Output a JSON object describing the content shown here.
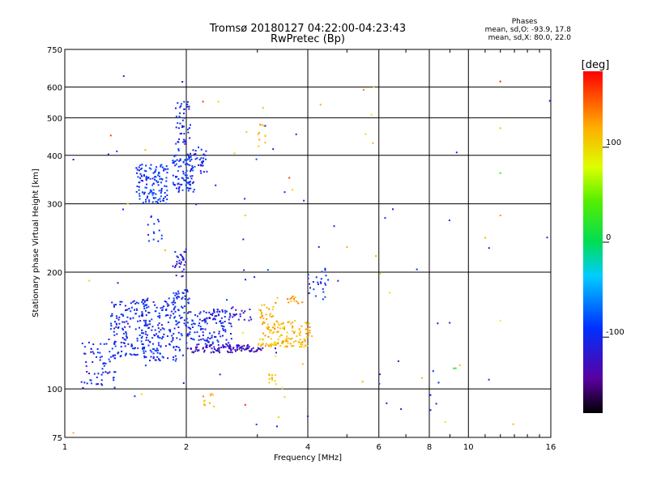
{
  "header": {
    "title_line1": "Tromsø 20180127 04:22:00-04:23:43",
    "title_line2": "RwPretec (Bp)"
  },
  "stats": {
    "title": "Phases",
    "line_o": "mean, sd,O: -93.9, 17.8",
    "line_x": "mean, sd,X:  80.0, 22.0"
  },
  "colorbar": {
    "unit_label": "[deg]",
    "ticks": [
      {
        "value": 100,
        "label": "100"
      },
      {
        "value": 0,
        "label": "0"
      },
      {
        "value": -100,
        "label": "-100"
      }
    ],
    "range": [
      -180,
      180
    ]
  },
  "chart_data": {
    "type": "scatter",
    "title": "Tromsø 20180127 04:22:00-04:23:43",
    "subtitle": "RwPretec (Bp)",
    "xlabel": "Frequency [MHz]",
    "ylabel": "Stationary phase Virtual Height [km]",
    "x_scale": "log",
    "y_scale": "log",
    "xlim": [
      1,
      16
    ],
    "ylim": [
      75,
      750
    ],
    "x_ticks": [
      1,
      2,
      4,
      6,
      8,
      10,
      16
    ],
    "y_ticks": [
      75,
      100,
      200,
      300,
      400,
      500,
      600,
      750
    ],
    "grid": true,
    "color_by": "phase [deg]",
    "clusters": [
      {
        "f": [
          1.1,
          1.35
        ],
        "h": [
          100,
          135
        ],
        "phase": -100,
        "n": 70
      },
      {
        "f": [
          1.3,
          1.6
        ],
        "h": [
          120,
          170
        ],
        "phase": -100,
        "n": 140
      },
      {
        "f": [
          1.55,
          1.9
        ],
        "h": [
          118,
          172
        ],
        "phase": -98,
        "n": 160
      },
      {
        "f": [
          1.85,
          2.05
        ],
        "h": [
          125,
          180
        ],
        "phase": -95,
        "n": 60
      },
      {
        "f": [
          2.0,
          2.6
        ],
        "h": [
          130,
          160
        ],
        "phase": -100,
        "n": 110
      },
      {
        "f": [
          2.05,
          3.1
        ],
        "h": [
          124,
          130
        ],
        "phase": -125,
        "n": 110
      },
      {
        "f": [
          2.2,
          2.9
        ],
        "h": [
          150,
          162
        ],
        "phase": -120,
        "n": 40
      },
      {
        "f": [
          3.0,
          4.0
        ],
        "h": [
          128,
          135
        ],
        "phase": 112,
        "n": 70
      },
      {
        "f": [
          3.1,
          4.05
        ],
        "h": [
          136,
          150
        ],
        "phase": 118,
        "n": 70
      },
      {
        "f": [
          3.0,
          3.3
        ],
        "h": [
          146,
          165
        ],
        "phase": 120,
        "n": 25
      },
      {
        "f": [
          3.3,
          3.9
        ],
        "h": [
          165,
          175
        ],
        "phase": 120,
        "n": 15
      },
      {
        "f": [
          3.2,
          3.35
        ],
        "h": [
          102,
          110
        ],
        "phase": 110,
        "n": 12
      },
      {
        "f": [
          4.0,
          4.5
        ],
        "h": [
          168,
          205
        ],
        "phase": -95,
        "n": 25
      },
      {
        "f": [
          1.5,
          1.8
        ],
        "h": [
          300,
          380
        ],
        "phase": -92,
        "n": 130
      },
      {
        "f": [
          1.85,
          2.1
        ],
        "h": [
          320,
          400
        ],
        "phase": -95,
        "n": 90
      },
      {
        "f": [
          1.88,
          2.05
        ],
        "h": [
          400,
          560
        ],
        "phase": -100,
        "n": 50
      },
      {
        "f": [
          2.05,
          2.25
        ],
        "h": [
          360,
          420
        ],
        "phase": -105,
        "n": 30
      },
      {
        "f": [
          1.85,
          2.0
        ],
        "h": [
          190,
          230
        ],
        "phase": -110,
        "n": 30
      },
      {
        "f": [
          1.6,
          1.75
        ],
        "h": [
          240,
          280
        ],
        "phase": -100,
        "n": 15
      },
      {
        "f": [
          3.0,
          3.2
        ],
        "h": [
          420,
          480
        ],
        "phase": 110,
        "n": 10
      },
      {
        "f": [
          2.2,
          2.35
        ],
        "h": [
          90,
          98
        ],
        "phase": 120,
        "n": 10
      },
      {
        "f": [
          1.0,
          16.0
        ],
        "h": [
          80,
          640
        ],
        "phase": -100,
        "n": 60
      },
      {
        "f": [
          1.0,
          16.0
        ],
        "h": [
          80,
          640
        ],
        "phase": 100,
        "n": 25
      }
    ],
    "points": [
      {
        "f": 9.2,
        "h": 113,
        "phase": 20
      },
      {
        "f": 9.3,
        "h": 113,
        "phase": 15
      },
      {
        "f": 12.0,
        "h": 620,
        "phase": 170
      },
      {
        "f": 12.0,
        "h": 470,
        "phase": 60
      },
      {
        "f": 12.0,
        "h": 360,
        "phase": 20
      },
      {
        "f": 12.0,
        "h": 280,
        "phase": 130
      },
      {
        "f": 12.0,
        "h": 150,
        "phase": 80
      },
      {
        "f": 5.8,
        "h": 430,
        "phase": 120
      },
      {
        "f": 5.5,
        "h": 590,
        "phase": 140
      },
      {
        "f": 5.9,
        "h": 220,
        "phase": 120
      },
      {
        "f": 5.0,
        "h": 232,
        "phase": 120
      },
      {
        "f": 4.3,
        "h": 540,
        "phase": 120
      },
      {
        "f": 3.1,
        "h": 530,
        "phase": 60
      },
      {
        "f": 3.6,
        "h": 350,
        "phase": 160
      },
      {
        "f": 2.8,
        "h": 280,
        "phase": 110
      },
      {
        "f": 2.2,
        "h": 550,
        "phase": 160
      },
      {
        "f": 2.4,
        "h": 550,
        "phase": 100
      },
      {
        "f": 1.4,
        "h": 640,
        "phase": -100
      },
      {
        "f": 1.3,
        "h": 450,
        "phase": 160
      },
      {
        "f": 1.05,
        "h": 390,
        "phase": -120
      },
      {
        "f": 2.8,
        "h": 91,
        "phase": 170
      },
      {
        "f": 4.0,
        "h": 85,
        "phase": -100
      },
      {
        "f": 1.05,
        "h": 77,
        "phase": 120
      },
      {
        "f": 1.15,
        "h": 190,
        "phase": 100
      },
      {
        "f": 1.55,
        "h": 97,
        "phase": 100
      }
    ]
  }
}
